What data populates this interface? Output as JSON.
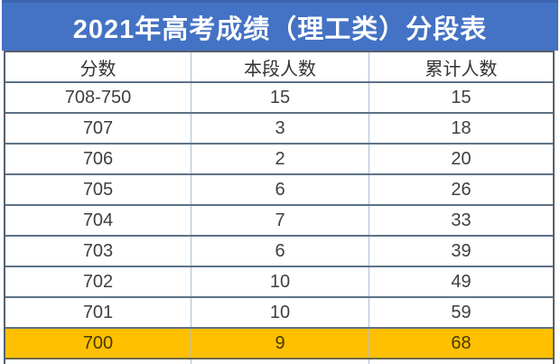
{
  "header": {
    "title": "2021年高考成绩（理工类）分段表"
  },
  "table": {
    "columns": [
      "分数",
      "本段人数",
      "累计人数"
    ],
    "rows": [
      {
        "score": "708-750",
        "segment": "15",
        "cumulative": "15",
        "highlight": false
      },
      {
        "score": "707",
        "segment": "3",
        "cumulative": "18",
        "highlight": false
      },
      {
        "score": "706",
        "segment": "2",
        "cumulative": "20",
        "highlight": false
      },
      {
        "score": "705",
        "segment": "6",
        "cumulative": "26",
        "highlight": false
      },
      {
        "score": "704",
        "segment": "7",
        "cumulative": "33",
        "highlight": false
      },
      {
        "score": "703",
        "segment": "6",
        "cumulative": "39",
        "highlight": false
      },
      {
        "score": "702",
        "segment": "10",
        "cumulative": "49",
        "highlight": false
      },
      {
        "score": "701",
        "segment": "10",
        "cumulative": "59",
        "highlight": false
      },
      {
        "score": "700",
        "segment": "9",
        "cumulative": "68",
        "highlight": true
      }
    ]
  },
  "colors": {
    "banner": "#4472C4",
    "banner_text": "#FFFFFF",
    "highlight": "#FFC000",
    "cell_text": "#3F3F3F"
  },
  "chart_data": {
    "type": "table",
    "title": "2021年高考成绩（理工类）分段表",
    "columns": [
      "分数",
      "本段人数",
      "累计人数"
    ],
    "rows": [
      [
        "708-750",
        15,
        15
      ],
      [
        "707",
        3,
        18
      ],
      [
        "706",
        2,
        20
      ],
      [
        "705",
        6,
        26
      ],
      [
        "704",
        7,
        33
      ],
      [
        "703",
        6,
        39
      ],
      [
        "702",
        10,
        49
      ],
      [
        "701",
        10,
        59
      ],
      [
        "700",
        9,
        68
      ]
    ],
    "highlighted_row": "700",
    "highlight_color": "#FFC000",
    "header_background": "#4472C4"
  }
}
